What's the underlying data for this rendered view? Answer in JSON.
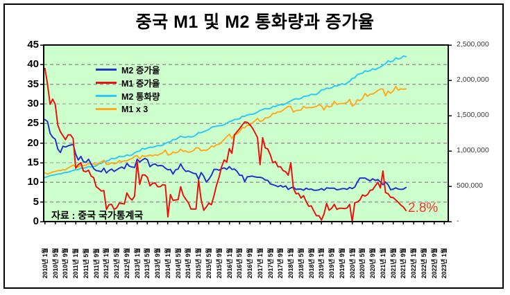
{
  "chart_data": {
    "type": "line",
    "title": "중국 M1 및 M2 통화량과 증가율",
    "source_note": "자료 : 중국 국가통계국",
    "annotation": {
      "text": "2.8%",
      "color": "#ff3030"
    },
    "colors": {
      "plot_bg": "#ccffcc",
      "grid": "#9a9a9a",
      "border": "#000000",
      "tick": "#000000"
    },
    "left_axis": {
      "min": 0,
      "max": 45,
      "tick_step": 5,
      "tick_labels": [
        "45",
        "40",
        "35",
        "30",
        "25",
        "20",
        "15",
        "10",
        "5",
        "0"
      ]
    },
    "right_axis": {
      "min": 0,
      "max": 2500000,
      "tick_step": 500000,
      "tick_labels": [
        "2,500,000",
        "2,000,000",
        "1,500,000",
        "1,000,000",
        "500,000",
        "-"
      ]
    },
    "x_labels": [
      "2010년 1월",
      "2010년 5월",
      "2010년 9월",
      "2011년 1월",
      "2011년 5월",
      "2011년 9월",
      "2012년 1월",
      "2012년 5월",
      "2012년 9월",
      "2013년 1월",
      "2013년 5월",
      "2013년 9월",
      "2014년 1월",
      "2014년 5월",
      "2014년 9월",
      "2015년 1월",
      "2015년 5월",
      "2015년 9월",
      "2016년 1월",
      "2016년 5월",
      "2016년 9월",
      "2017년 1월",
      "2017년 5월",
      "2017년 9월",
      "2018년 1월",
      "2018년 5월",
      "2018년 9월",
      "2019년 1월",
      "2019년 5월",
      "2019년 9월",
      "2020년 1월",
      "2020년 5월",
      "2020년 9월",
      "2021년 1월",
      "2021년 5월",
      "2021년 9월",
      "2022년 1월",
      "2022년 5월",
      "2022년 9월",
      "2023년 1월"
    ],
    "x_label_interval_months": 4,
    "months_start": "2010-01",
    "grid_on": true,
    "legend_position": "upper-left-inside",
    "series": [
      {
        "name": "M2 증가율",
        "color": "#2233cc",
        "axis": "left",
        "values": [
          26,
          25.5,
          22.5,
          21.5,
          21,
          18.5,
          17.6,
          19.2,
          19,
          19.3,
          19.5,
          19.7,
          17.2,
          15.7,
          16.6,
          15.3,
          15.1,
          15.9,
          14.7,
          13.5,
          13,
          12.9,
          12.7,
          13.6,
          12.4,
          13,
          13.4,
          12.8,
          13.2,
          13.6,
          13.9,
          13.5,
          14.8,
          14.1,
          13.9,
          13.8,
          15.9,
          15.2,
          15.7,
          16.1,
          15.8,
          14,
          14.5,
          14.7,
          14.2,
          14.3,
          14.2,
          13.6,
          13.2,
          13.3,
          12.1,
          13.2,
          13.4,
          14.7,
          13.5,
          12.8,
          12.9,
          12.6,
          12.3,
          12.2,
          10.8,
          12.5,
          11.6,
          10.1,
          10.8,
          11.8,
          13.3,
          13.3,
          13.1,
          13.5,
          13.7,
          13.3,
          14,
          13.3,
          13.4,
          12.8,
          11.8,
          11.8,
          10.2,
          11.4,
          11.5,
          11.6,
          11.4,
          11.3,
          11.3,
          11.1,
          10.6,
          10.5,
          9.6,
          9.4,
          9.2,
          8.9,
          9.2,
          8.8,
          9.1,
          8.2,
          8.6,
          8.8,
          8.2,
          8.3,
          8.3,
          8,
          8.5,
          8.2,
          8.3,
          8,
          8,
          8.1,
          8.4,
          8,
          8.6,
          8.5,
          8.5,
          8.5,
          8.1,
          8.2,
          8.4,
          8.4,
          8.2,
          8.7,
          8.4,
          8.8,
          10.1,
          11.1,
          11.1,
          11.1,
          10.7,
          10.4,
          10.9,
          10.5,
          10.7,
          10.1,
          9.4,
          10.1,
          9.4,
          8.1,
          8.3,
          8.6,
          8.3,
          8.2,
          8.3,
          8.7
        ]
      },
      {
        "name": "M1 증가율",
        "color": "#e8120e",
        "axis": "left",
        "values": [
          39,
          35,
          29.9,
          31.2,
          29.9,
          24.6,
          22.9,
          21.9,
          20.9,
          22.1,
          22.1,
          21.2,
          13.6,
          14.5,
          15,
          12.9,
          12.7,
          13.1,
          11.6,
          11.2,
          8.9,
          8.4,
          7.8,
          7.9,
          3.1,
          4.3,
          4.4,
          3.1,
          3.5,
          4.7,
          4.6,
          4.5,
          7.3,
          6.1,
          5.5,
          6.5,
          15.3,
          9.5,
          11.9,
          11.9,
          11.3,
          9.1,
          9.7,
          9.9,
          8.9,
          8.9,
          9.4,
          9.3,
          1.2,
          6.9,
          5.4,
          5.5,
          5.6,
          8.9,
          6.7,
          5.7,
          4.8,
          3.2,
          3.2,
          3.2,
          10.6,
          5.6,
          2.9,
          3.7,
          4.7,
          4.3,
          6.6,
          9.3,
          11.4,
          14,
          15.7,
          15.2,
          18.6,
          17.4,
          22.1,
          22.9,
          23.7,
          24.6,
          25.4,
          25.3,
          24.7,
          23.9,
          22.7,
          21.4,
          14.5,
          21.4,
          18.8,
          18.5,
          17,
          15,
          15.3,
          14,
          14,
          13,
          12.7,
          11.8,
          15,
          8.5,
          7.1,
          7.2,
          6,
          6.6,
          5.1,
          3.9,
          4,
          2.7,
          1.5,
          1.5,
          0.4,
          2,
          4.6,
          2.9,
          3.4,
          4.4,
          3.1,
          3.4,
          3.4,
          3.3,
          3.5,
          4.4,
          0,
          4.8,
          5,
          5.5,
          6.8,
          6.5,
          6.9,
          8,
          8.1,
          9.1,
          10,
          8.6,
          12.9,
          7.4,
          7.1,
          6.2,
          6.1,
          5.5,
          4.9,
          4.2,
          3.7,
          2.8
        ]
      },
      {
        "name": "M2 통화량",
        "color": "#30c8f5",
        "axis": "right",
        "values": [
          625000,
          636100,
          650000,
          656600,
          663300,
          673900,
          674100,
          687500,
          696400,
          699800,
          710300,
          725800,
          733800,
          736100,
          758100,
          757300,
          763400,
          780800,
          773200,
          780900,
          787400,
          816800,
          825500,
          851600,
          855900,
          867700,
          895600,
          889600,
          900900,
          925000,
          919100,
          924900,
          943700,
          934000,
          945200,
          974200,
          992100,
          998600,
          1036100,
          1026400,
          1042100,
          1054000,
          1052400,
          1061700,
          1077400,
          1073100,
          1082800,
          1106500,
          1122400,
          1130500,
          1161600,
          1161900,
          1184800,
          1209600,
          1196100,
          1192900,
          1204700,
          1196700,
          1204200,
          1228400,
          1260000,
          1258600,
          1272500,
          1288000,
          1305000,
          1334000,
          1344200,
          1350100,
          1358000,
          1360400,
          1371600,
          1392300,
          1414600,
          1425100,
          1446200,
          1446700,
          1455800,
          1490500,
          1490200,
          1510000,
          1516400,
          1519500,
          1530400,
          1550100,
          1574500,
          1586600,
          1599600,
          1596900,
          1599600,
          1631300,
          1629000,
          1646700,
          1657300,
          1652100,
          1670000,
          1690200,
          1708100,
          1729100,
          1739900,
          1732800,
          1745300,
          1770200,
          1777600,
          1782500,
          1803200,
          1797700,
          1800000,
          1826700,
          1865900,
          1867400,
          1889400,
          1885000,
          1893400,
          1921400,
          1919400,
          1933300,
          1952300,
          1940000,
          1961600,
          1986500,
          2026500,
          2035500,
          2080900,
          2093500,
          2100200,
          2134900,
          2125500,
          2136800,
          2164100,
          2149700,
          2172000,
          2186800,
          2213000,
          2236000,
          2276500,
          2262100,
          2275500,
          2317800,
          2302200,
          2312300,
          2342800,
          2336200
        ]
      },
      {
        "name": "M1 x 3",
        "color": "#ffaa1e",
        "axis": "right",
        "values": [
          688800,
          672900,
          688200,
          701700,
          709500,
          721800,
          722100,
          732900,
          731400,
          759900,
          778200,
          799800,
          779400,
          770400,
          798900,
          792300,
          799500,
          824100,
          808800,
          819900,
          801600,
          829800,
          844200,
          869400,
          809700,
          810900,
          834000,
          817500,
          828000,
          862500,
          849300,
          860400,
          860400,
          879900,
          890700,
          926100,
          933600,
          888000,
          933600,
          922800,
          930600,
          940800,
          931800,
          945600,
          936900,
          957900,
          974700,
          1011900,
          944700,
          949800,
          984000,
          973500,
          983400,
          1024500,
          994200,
          999900,
          981600,
          988800,
          1006200,
          1044300,
          1044300,
          1003200,
          1011600,
          1009200,
          1029300,
          1068300,
          1059600,
          1088400,
          1093200,
          1127400,
          1162800,
          1203000,
          1238100,
          1177500,
          1234800,
          1240500,
          1272900,
          1330800,
          1328700,
          1363500,
          1362900,
          1396800,
          1426200,
          1459800,
          1417500,
          1429500,
          1466400,
          1470000,
          1489200,
          1530600,
          1531500,
          1553700,
          1553700,
          1578000,
          1607100,
          1631400,
          1629600,
          1551000,
          1570500,
          1576200,
          1578900,
          1631700,
          1609800,
          1614900,
          1615800,
          1620300,
          1630500,
          1655100,
          1636800,
          1581600,
          1642800,
          1621800,
          1633200,
          1703100,
          1659000,
          1670400,
          1671300,
          1674300,
          1687500,
          1728000,
          1636500,
          1657800,
          1725300,
          1710600,
          1743300,
          1812900,
          1773600,
          1803900,
          1806900,
          1827600,
          1855800,
          1876800,
          1876800,
          1780500,
          1848300,
          1816200,
          1850400,
          1912500,
          1861200,
          1879800,
          1873800,
          1878300
        ]
      }
    ]
  }
}
